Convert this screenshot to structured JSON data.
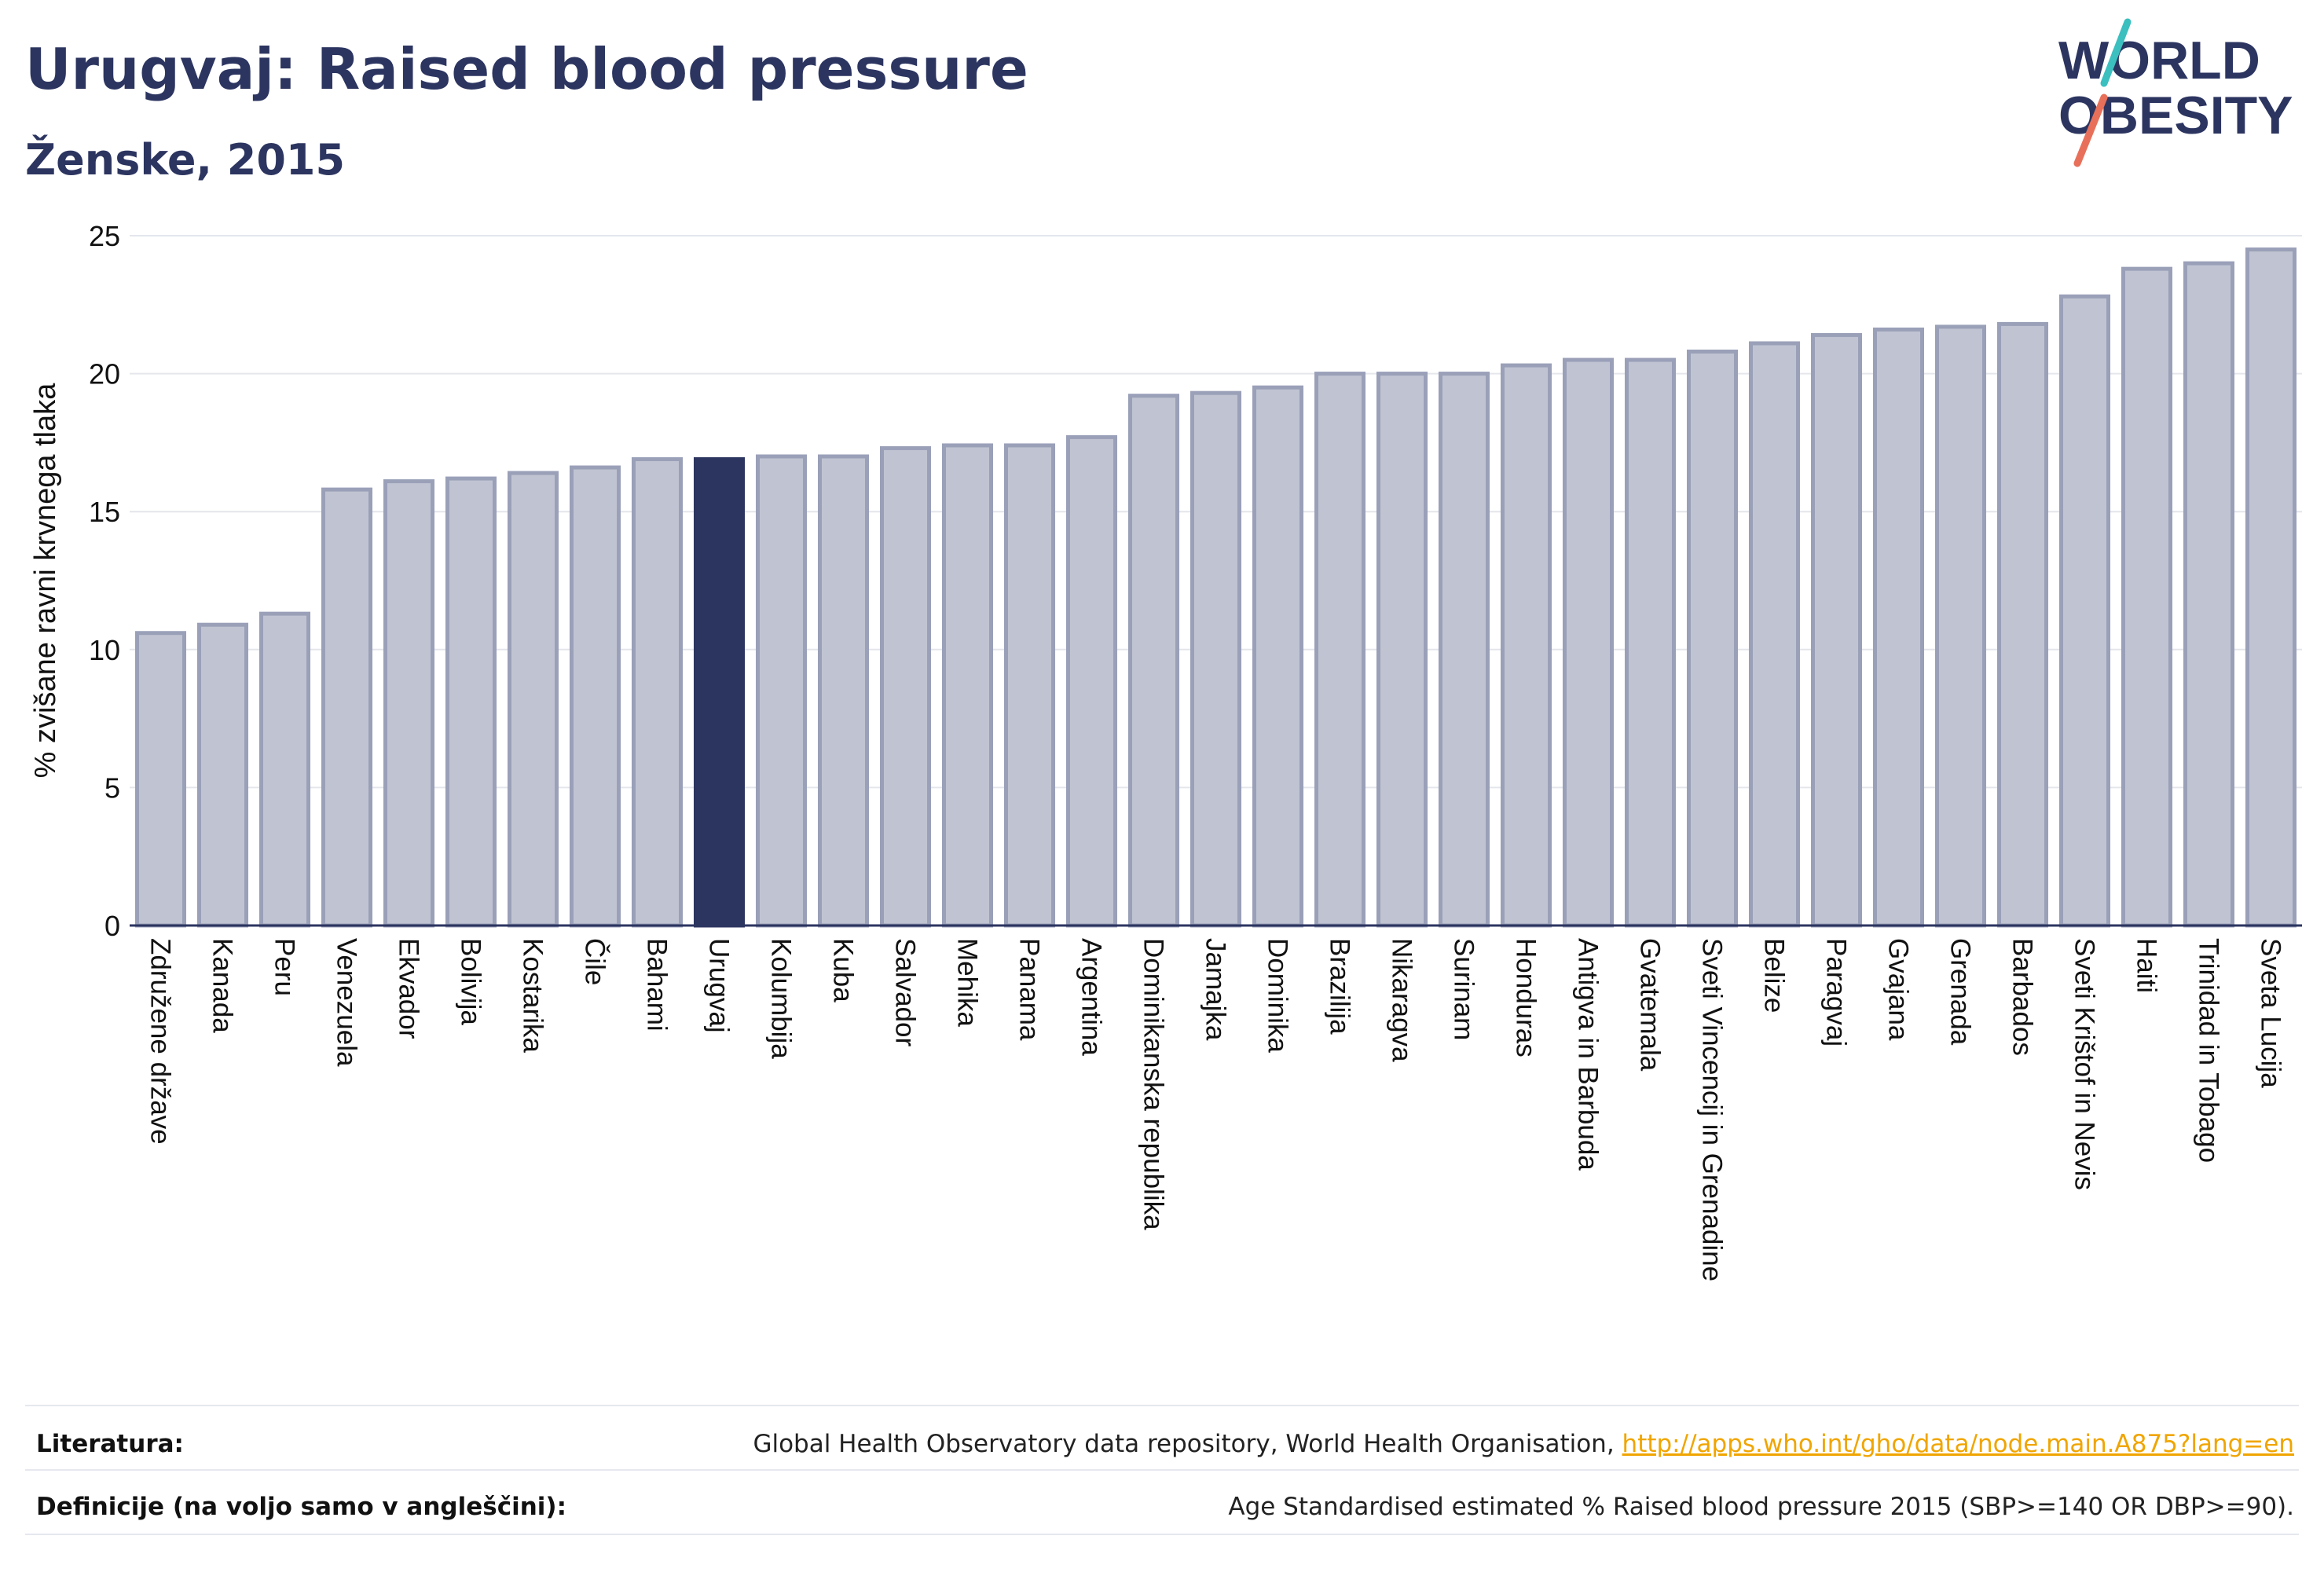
{
  "header": {
    "title": "Urugvaj: Raised blood pressure",
    "subtitle": "Ženske, 2015"
  },
  "logo": {
    "line1": "WORLD",
    "line2": "OBESITY",
    "accent_teal": "#3bbfbf",
    "accent_coral": "#e8705a",
    "color": "#2c3560"
  },
  "colors": {
    "bar_fill": "#c0c4d2",
    "bar_stroke": "#9aa0b8",
    "highlight_fill": "#2c3560",
    "grid": "#e4e6ec",
    "axis": "#2c3560"
  },
  "chart_data": {
    "type": "bar",
    "ylabel": "% zvišane ravni krvnega tlaka",
    "xlabel": "",
    "ylim": [
      0,
      25
    ],
    "yticks": [
      0,
      5,
      10,
      15,
      20,
      25
    ],
    "grid": true,
    "highlight": "Urugvaj",
    "categories": [
      "Združene države",
      "Kanada",
      "Peru",
      "Venezuela",
      "Ekvador",
      "Bolivija",
      "Kostarika",
      "Čile",
      "Bahami",
      "Urugvaj",
      "Kolumbija",
      "Kuba",
      "Salvador",
      "Mehika",
      "Panama",
      "Argentina",
      "Dominikanska republika",
      "Jamajka",
      "Dominika",
      "Brazilija",
      "Nikaragva",
      "Surinam",
      "Honduras",
      "Antigva in Barbuda",
      "Gvatemala",
      "Sveti Vincencij in Grenadine",
      "Belize",
      "Paragvaj",
      "Gvajana",
      "Grenada",
      "Barbados",
      "Sveti Krištof in Nevis",
      "Haiti",
      "Trinidad in Tobago",
      "Sveta Lucija"
    ],
    "values": [
      10.6,
      10.9,
      11.3,
      15.8,
      16.1,
      16.2,
      16.4,
      16.6,
      16.9,
      16.9,
      17.0,
      17.0,
      17.3,
      17.4,
      17.4,
      17.7,
      19.2,
      19.3,
      19.5,
      20.0,
      20.0,
      20.0,
      20.3,
      20.5,
      20.5,
      20.8,
      21.1,
      21.4,
      21.6,
      21.7,
      21.8,
      22.8,
      23.8,
      24.0,
      24.5
    ]
  },
  "footer": {
    "literature_label": "Literatura:",
    "literature_text": "Global Health Observatory data repository, World Health Organisation, ",
    "literature_link": "http://apps.who.int/gho/data/node.main.A875?lang=en",
    "definitions_label": "Definicije (na voljo samo v angleščini):",
    "definitions_text": "Age Standardised estimated % Raised blood pressure 2015 (SBP>=140 OR DBP>=90)."
  }
}
